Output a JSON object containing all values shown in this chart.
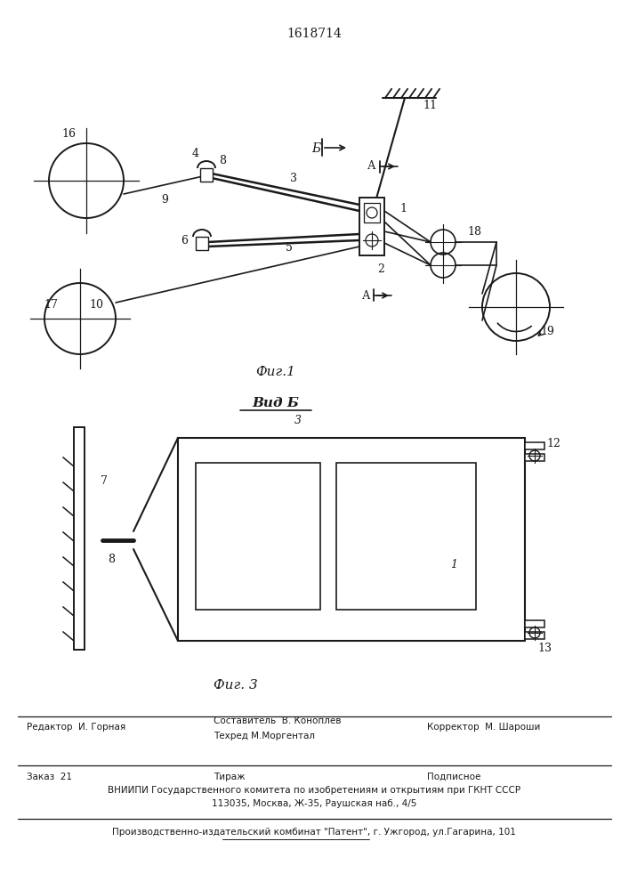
{
  "patent_number": "1618714",
  "fig1_caption": "Фиг.1",
  "fig3_caption": "Фиг. 3",
  "vid_b_label": "Вид Б",
  "bg_color": "#ffffff",
  "line_color": "#1a1a1a",
  "editor_line": "Редактор  И. Горная",
  "compiler_line": "Составитель  В. Коноплев",
  "techred_line": "Техред М.Моргентал",
  "corrector_line": "Корректор  М. Шароши",
  "order_line": "Заказ  21",
  "tirazh_line": "Тираж",
  "podpisnoe_line": "Подписное",
  "vniiipi_line": "ВНИИПИ Государственного комитета по изобретениям и открытиям при ГКНТ СССР",
  "address_line": "113035, Москва, Ж-35, Раушская наб., 4/5",
  "kombinat_line": "Производственно-издательский комбинат \"Патент\", г. Ужгород, ул.Гагарина, 101"
}
